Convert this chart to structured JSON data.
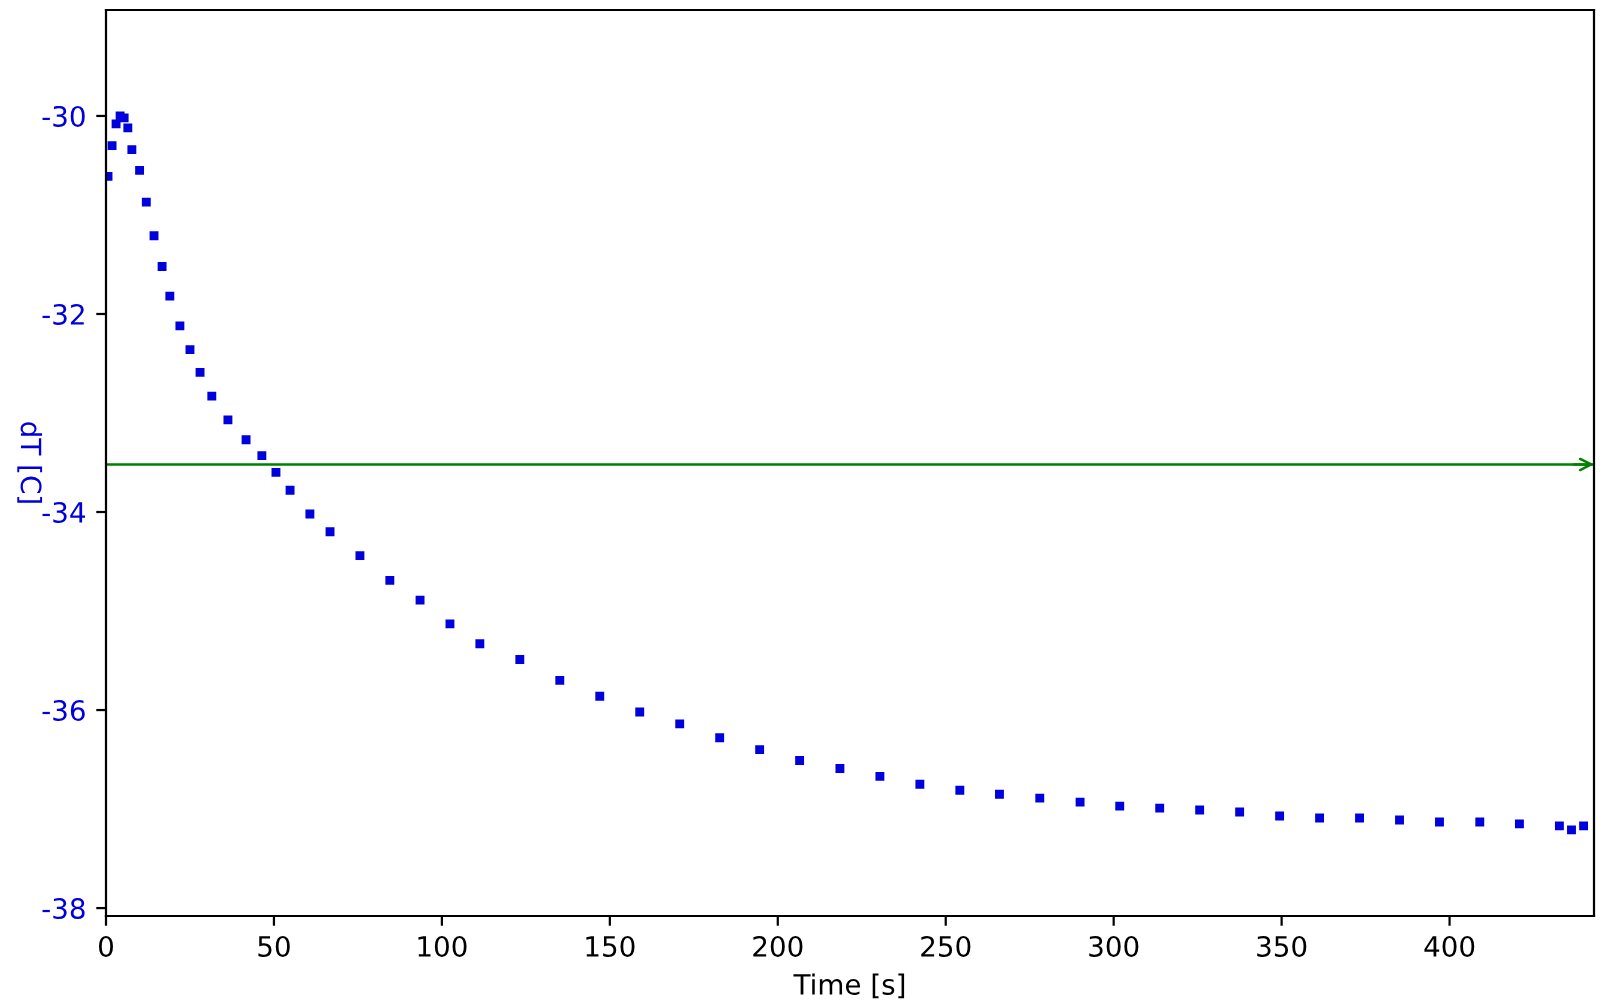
{
  "chart_data": {
    "type": "scatter",
    "xlabel": "Time [s]",
    "ylabel": "dT [C]",
    "xlim": [
      0,
      443
    ],
    "ylim": [
      -38.08,
      -28.93
    ],
    "xticks": [
      0,
      50,
      100,
      150,
      200,
      250,
      300,
      350,
      400
    ],
    "yticks": [
      -38,
      -36,
      -34,
      -32,
      -30
    ],
    "marker": "square",
    "grid": false,
    "legend": false,
    "ref_lines": [
      {
        "axis": "y",
        "value": -33.52,
        "color": "#008000"
      }
    ],
    "series": [
      {
        "color": "#0000dd",
        "x": [
          0.6,
          1.8,
          3,
          4.2,
          5.4,
          6.5,
          7.7,
          10,
          12,
          14.3,
          16.7,
          19,
          22,
          25,
          28,
          31.5,
          36.3,
          41.7,
          46.4,
          50.6,
          54.8,
          60.7,
          66.7,
          75.6,
          84.5,
          93.5,
          102.4,
          111.3,
          123.2,
          135.1,
          147,
          158.9,
          170.8,
          182.7,
          194.6,
          206.5,
          218.5,
          230.4,
          242.3,
          254.2,
          266,
          278,
          290,
          301.8,
          313.7,
          325.6,
          337.5,
          349.4,
          361.3,
          373.2,
          385.1,
          397,
          409,
          420.8,
          432.7,
          436.3,
          439.9
        ],
        "values": [
          -30.61,
          -30.3,
          -30.08,
          -30.0,
          -30.02,
          -30.12,
          -30.34,
          -30.55,
          -30.87,
          -31.21,
          -31.52,
          -31.82,
          -32.12,
          -32.36,
          -32.59,
          -32.83,
          -33.07,
          -33.27,
          -33.43,
          -33.6,
          -33.78,
          -34.02,
          -34.2,
          -34.44,
          -34.69,
          -34.89,
          -35.13,
          -35.33,
          -35.49,
          -35.7,
          -35.86,
          -36.02,
          -36.14,
          -36.28,
          -36.4,
          -36.51,
          -36.59,
          -36.67,
          -36.75,
          -36.81,
          -36.85,
          -36.89,
          -36.93,
          -36.97,
          -36.99,
          -37.01,
          -37.03,
          -37.07,
          -37.09,
          -37.09,
          -37.11,
          -37.13,
          -37.13,
          -37.15,
          -37.17,
          -37.21,
          -37.17
        ]
      }
    ]
  }
}
